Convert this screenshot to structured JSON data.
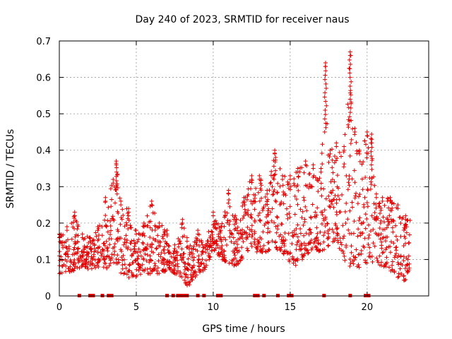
{
  "chart_data": {
    "type": "scatter",
    "title": "Day 240 of 2023, SRMTID for receiver naus",
    "xlabel": "GPS time / hours",
    "ylabel": "SRMTID / TECUs",
    "xlim": [
      0,
      24
    ],
    "ylim": [
      0,
      0.7
    ],
    "grid": true,
    "xticks": [
      0,
      5,
      10,
      15,
      20
    ],
    "yticks": [
      0,
      0.1,
      0.2,
      0.3,
      0.4,
      0.5,
      0.6,
      0.7
    ],
    "xtick_labels": [
      "0",
      "5",
      "10",
      "15",
      "20"
    ],
    "ytick_labels": [
      "0",
      "0.1",
      "0.2",
      "0.3",
      "0.4",
      "0.5",
      "0.6",
      "0.7"
    ],
    "marker": "+",
    "color": "#e00000",
    "series": [
      {
        "name": "SRMTID",
        "note": "approximate envelope of the dense scatter, read off the axes",
        "x": [
          0.0,
          0.5,
          1.0,
          1.5,
          2.0,
          2.5,
          3.0,
          3.5,
          3.7,
          4.0,
          4.5,
          5.0,
          5.5,
          6.0,
          6.5,
          7.0,
          7.5,
          8.0,
          8.3,
          8.6,
          9.0,
          9.5,
          10.0,
          10.5,
          11.0,
          11.5,
          12.0,
          12.5,
          13.0,
          13.5,
          14.0,
          14.5,
          15.0,
          15.5,
          16.0,
          16.5,
          17.0,
          17.3,
          17.6,
          18.0,
          18.5,
          18.9,
          19.2,
          19.5,
          20.0,
          20.3,
          20.6,
          21.0,
          21.5,
          22.0,
          22.5,
          22.8
        ],
        "low": [
          0.06,
          0.06,
          0.07,
          0.08,
          0.07,
          0.08,
          0.07,
          0.09,
          0.08,
          0.06,
          0.05,
          0.05,
          0.06,
          0.06,
          0.06,
          0.07,
          0.06,
          0.05,
          0.02,
          0.04,
          0.06,
          0.07,
          0.13,
          0.1,
          0.09,
          0.08,
          0.11,
          0.12,
          0.12,
          0.12,
          0.13,
          0.12,
          0.09,
          0.08,
          0.11,
          0.13,
          0.12,
          0.13,
          0.14,
          0.15,
          0.1,
          0.08,
          0.09,
          0.07,
          0.09,
          0.08,
          0.09,
          0.08,
          0.07,
          0.05,
          0.04,
          0.08
        ],
        "high": [
          0.17,
          0.19,
          0.23,
          0.17,
          0.16,
          0.19,
          0.27,
          0.32,
          0.37,
          0.26,
          0.24,
          0.18,
          0.2,
          0.26,
          0.2,
          0.18,
          0.14,
          0.21,
          0.16,
          0.13,
          0.18,
          0.14,
          0.23,
          0.19,
          0.29,
          0.21,
          0.27,
          0.33,
          0.33,
          0.29,
          0.4,
          0.33,
          0.33,
          0.35,
          0.37,
          0.36,
          0.35,
          0.64,
          0.4,
          0.42,
          0.41,
          0.67,
          0.46,
          0.4,
          0.45,
          0.43,
          0.28,
          0.27,
          0.27,
          0.25,
          0.22,
          0.21
        ]
      }
    ],
    "gap_markers_x": [
      1.3,
      2.0,
      2.2,
      2.8,
      3.2,
      3.4,
      7.0,
      7.4,
      7.7,
      7.9,
      8.1,
      8.3,
      9.0,
      9.4,
      10.3,
      10.5,
      12.7,
      12.9,
      13.3,
      14.2,
      14.9,
      15.1,
      17.2,
      18.9,
      19.9,
      20.1
    ]
  }
}
